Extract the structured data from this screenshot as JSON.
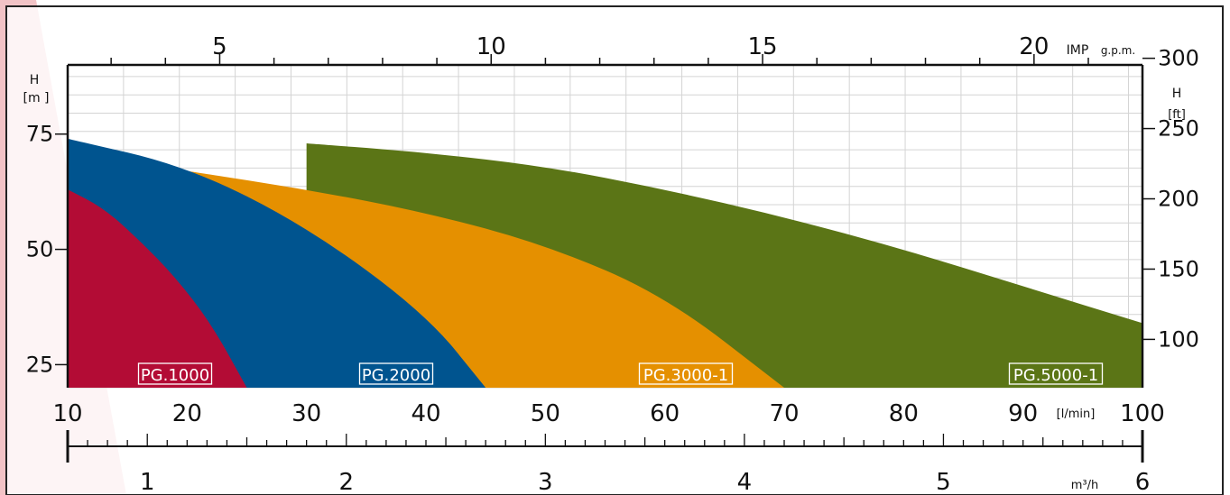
{
  "colors": {
    "pg1000": "#b30c35",
    "pg2000": "#00548f",
    "pg3000": "#e59000",
    "pg5000": "#5b7516",
    "grid": "#d4d4d4",
    "axis": "#111111",
    "frame": "#222222",
    "sidebar": "#d9545b"
  },
  "chart_data": {
    "type": "area",
    "x_axis_lpm": {
      "min": 10,
      "max": 100,
      "ticks": [
        10,
        20,
        30,
        40,
        50,
        60,
        70,
        80,
        90,
        100
      ],
      "unit": "[l/min]"
    },
    "x_axis_m3h": {
      "min": 0.6,
      "max": 6,
      "ticks": [
        1,
        2,
        3,
        4,
        5,
        6
      ],
      "unit": "m³/h"
    },
    "x_axis_imp": {
      "ticks": [
        5,
        10,
        15,
        20
      ],
      "unit": "IMP",
      "unit2": "g.p.m."
    },
    "y_axis_m": {
      "min": 20,
      "max": 90,
      "ticks": [
        25,
        50,
        75
      ],
      "label": "H",
      "unit": "[m ]"
    },
    "y_axis_ft": {
      "ticks": [
        100,
        150,
        200,
        250,
        300
      ],
      "label": "H",
      "unit": "[ft]"
    },
    "grid": true,
    "series": [
      {
        "name": "PG.1000",
        "x": [
          10,
          13,
          16,
          19,
          22,
          25
        ],
        "y": [
          63,
          59,
          52,
          44,
          34,
          20
        ]
      },
      {
        "name": "PG.2000",
        "x": [
          10,
          20,
          30,
          40,
          45
        ],
        "y": [
          74,
          68,
          55,
          36,
          20
        ]
      },
      {
        "name": "PG.3000-1",
        "start": 20,
        "x": [
          20,
          30,
          40,
          50,
          60,
          70
        ],
        "y": [
          67,
          63,
          58,
          51,
          40,
          20
        ]
      },
      {
        "name": "PG.5000-1",
        "start": 30,
        "x": [
          30,
          40,
          50,
          60,
          70,
          80,
          90,
          100
        ],
        "y": [
          73,
          71,
          68,
          63,
          57,
          50,
          42,
          34
        ]
      }
    ]
  }
}
